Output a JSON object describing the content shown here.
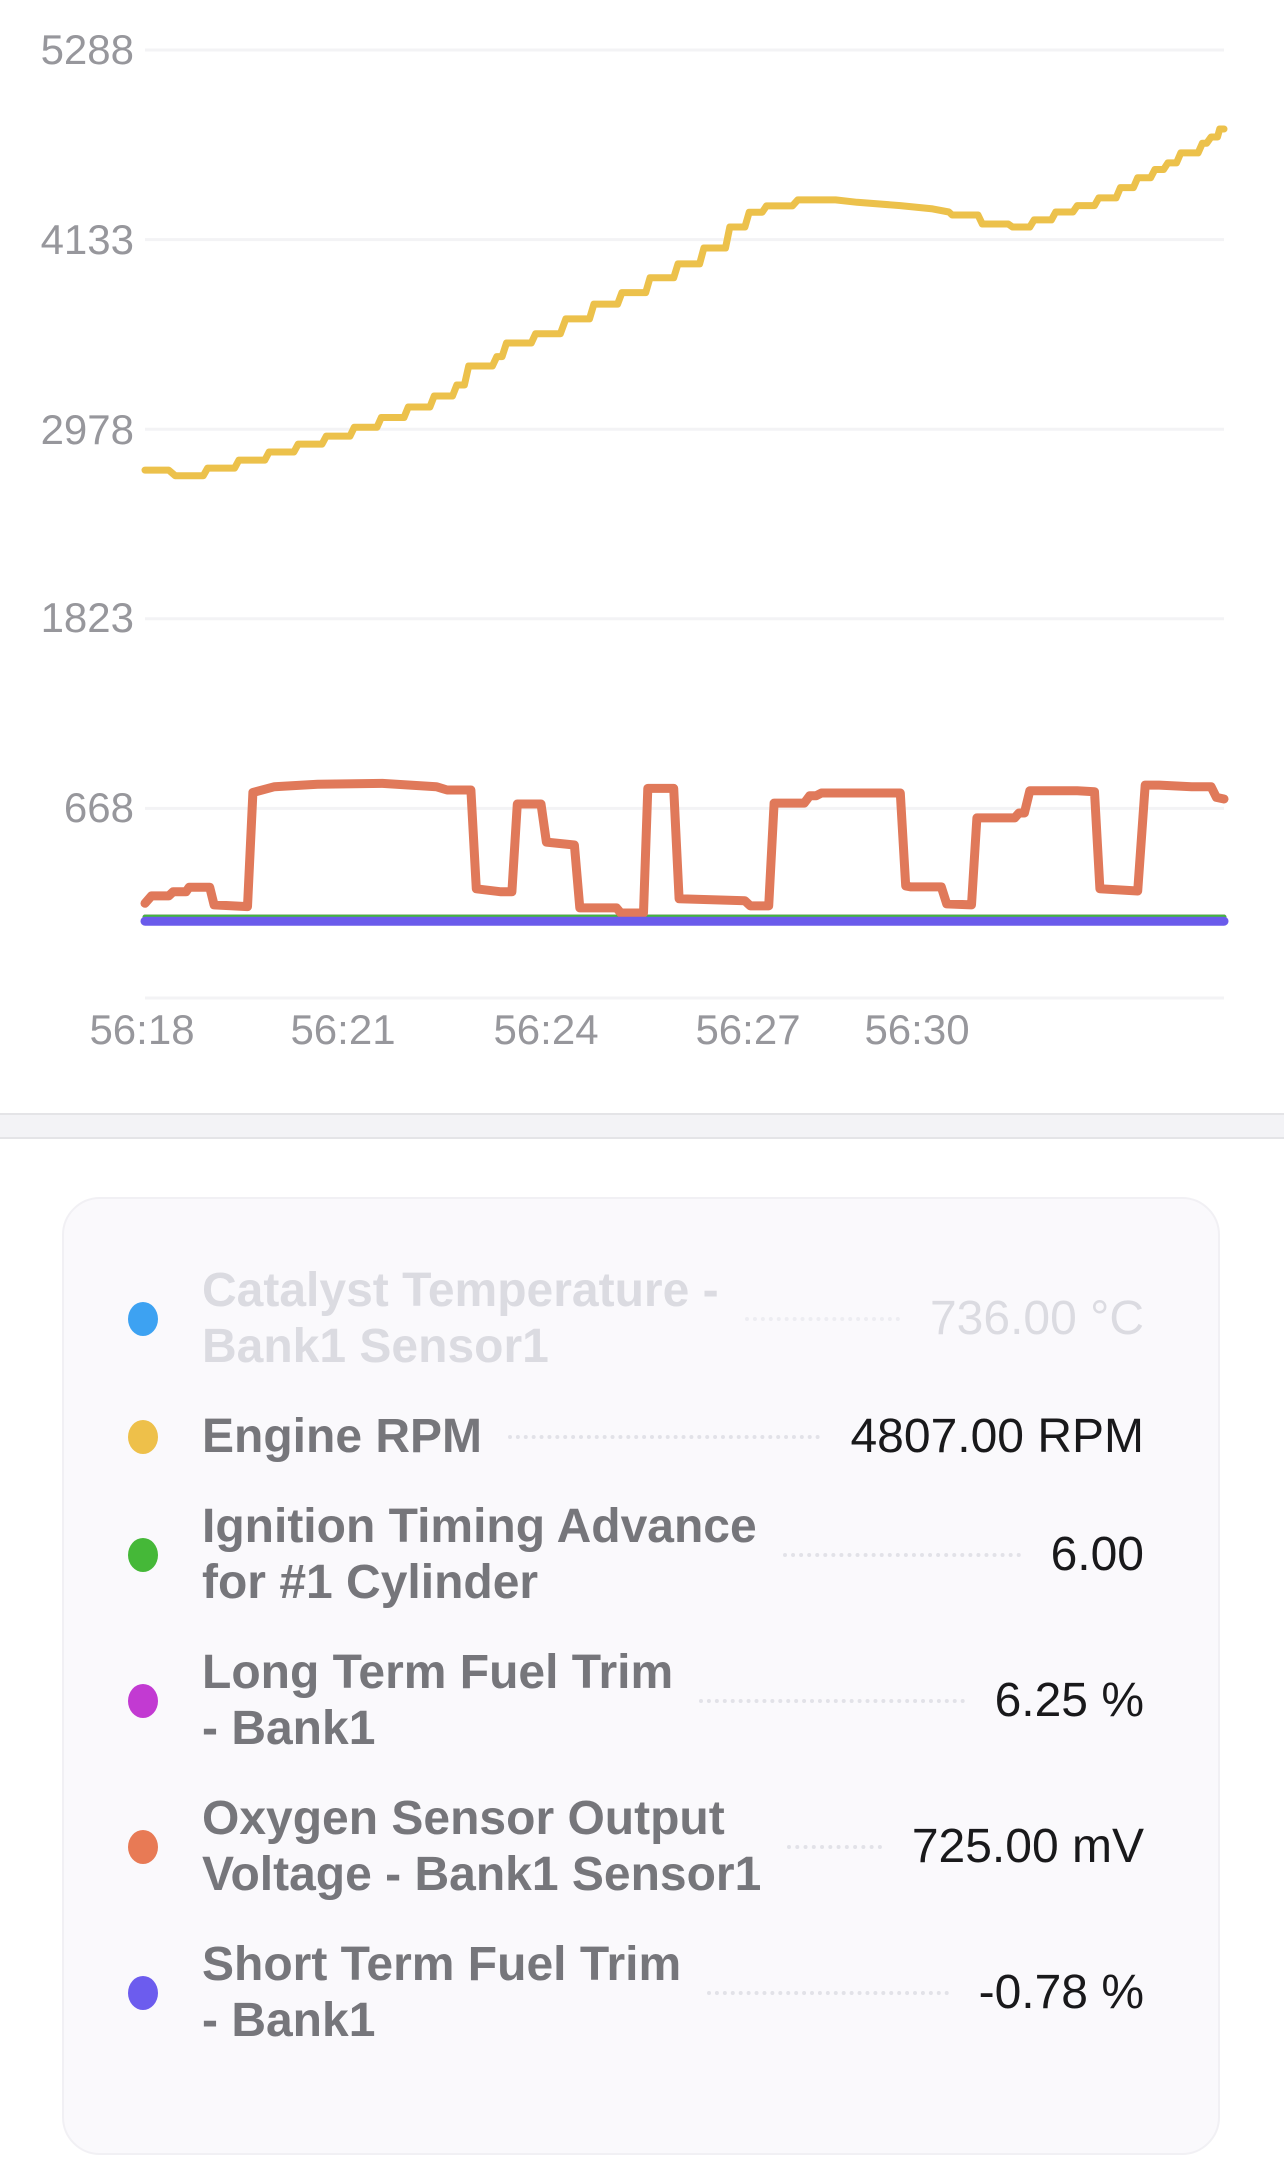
{
  "chart_data": {
    "type": "line",
    "title": "",
    "x_axis": {
      "labels": [
        "56:18",
        "56:21",
        "56:24",
        "56:27",
        "56:30"
      ],
      "unit": "mm:ss"
    },
    "y_axis": {
      "tick_labels": [
        "5288",
        "4133",
        "2978",
        "1823",
        "668"
      ],
      "ticks": [
        5288,
        4133,
        2978,
        1823,
        668
      ],
      "range_top": 5288,
      "range_bottom": -487,
      "baseline": -487,
      "gridlines": true
    },
    "legend_position": "bottom-card",
    "series": [
      {
        "name": "Catalyst Temperature - Bank1 Sensor1",
        "unit": "°C",
        "current_value": 736.0,
        "color": "#3da2f2",
        "visible": false,
        "width": 7,
        "points": []
      },
      {
        "name": "Engine RPM",
        "unit": "RPM",
        "current_value": 4807.0,
        "color": "#ecc14b",
        "visible": true,
        "width": 7,
        "points": [
          [
            0.0,
            2729
          ],
          [
            0.022,
            2729
          ],
          [
            0.028,
            2695
          ],
          [
            0.054,
            2695
          ],
          [
            0.058,
            2741
          ],
          [
            0.083,
            2741
          ],
          [
            0.087,
            2790
          ],
          [
            0.111,
            2790
          ],
          [
            0.115,
            2839
          ],
          [
            0.138,
            2839
          ],
          [
            0.142,
            2887
          ],
          [
            0.164,
            2887
          ],
          [
            0.168,
            2936
          ],
          [
            0.19,
            2936
          ],
          [
            0.194,
            2990
          ],
          [
            0.215,
            2990
          ],
          [
            0.219,
            3049
          ],
          [
            0.24,
            3049
          ],
          [
            0.244,
            3113
          ],
          [
            0.264,
            3113
          ],
          [
            0.268,
            3180
          ],
          [
            0.285,
            3180
          ],
          [
            0.289,
            3247
          ],
          [
            0.296,
            3247
          ],
          [
            0.3,
            3363
          ],
          [
            0.322,
            3363
          ],
          [
            0.326,
            3420
          ],
          [
            0.331,
            3420
          ],
          [
            0.335,
            3503
          ],
          [
            0.358,
            3503
          ],
          [
            0.362,
            3560
          ],
          [
            0.385,
            3560
          ],
          [
            0.39,
            3650
          ],
          [
            0.412,
            3650
          ],
          [
            0.416,
            3740
          ],
          [
            0.438,
            3740
          ],
          [
            0.442,
            3810
          ],
          [
            0.464,
            3810
          ],
          [
            0.468,
            3900
          ],
          [
            0.49,
            3900
          ],
          [
            0.494,
            3985
          ],
          [
            0.514,
            3985
          ],
          [
            0.518,
            4082
          ],
          [
            0.538,
            4082
          ],
          [
            0.542,
            4210
          ],
          [
            0.556,
            4210
          ],
          [
            0.56,
            4300
          ],
          [
            0.572,
            4300
          ],
          [
            0.576,
            4338
          ],
          [
            0.6,
            4338
          ],
          [
            0.605,
            4375
          ],
          [
            0.64,
            4375
          ],
          [
            0.66,
            4360
          ],
          [
            0.7,
            4340
          ],
          [
            0.73,
            4320
          ],
          [
            0.745,
            4301
          ],
          [
            0.748,
            4283
          ],
          [
            0.772,
            4283
          ],
          [
            0.776,
            4228
          ],
          [
            0.8,
            4228
          ],
          [
            0.804,
            4210
          ],
          [
            0.82,
            4210
          ],
          [
            0.824,
            4253
          ],
          [
            0.84,
            4253
          ],
          [
            0.844,
            4301
          ],
          [
            0.86,
            4301
          ],
          [
            0.864,
            4340
          ],
          [
            0.88,
            4340
          ],
          [
            0.884,
            4387
          ],
          [
            0.9,
            4387
          ],
          [
            0.904,
            4450
          ],
          [
            0.916,
            4450
          ],
          [
            0.92,
            4510
          ],
          [
            0.932,
            4510
          ],
          [
            0.936,
            4560
          ],
          [
            0.944,
            4560
          ],
          [
            0.948,
            4600
          ],
          [
            0.956,
            4600
          ],
          [
            0.96,
            4661
          ],
          [
            0.976,
            4661
          ],
          [
            0.98,
            4720
          ],
          [
            0.984,
            4720
          ],
          [
            0.988,
            4758
          ],
          [
            0.994,
            4758
          ],
          [
            0.996,
            4807
          ],
          [
            1.0,
            4807
          ]
        ]
      },
      {
        "name": "Ignition Timing Advance for #1 Cylinder",
        "unit": "",
        "current_value": 6.0,
        "color": "#43b83c",
        "visible": true,
        "width": 5,
        "points": [
          [
            0.0,
            6
          ],
          [
            1.0,
            6
          ]
        ]
      },
      {
        "name": "Long Term Fuel Trim - Bank1",
        "unit": "%",
        "current_value": 6.25,
        "color": "#c23ad2",
        "visible": true,
        "width": 5,
        "points": [
          [
            0.0,
            6.25
          ],
          [
            1.0,
            6.25
          ]
        ]
      },
      {
        "name": "Oxygen Sensor Output Voltage - Bank1 Sensor1",
        "unit": "mV",
        "current_value": 725.0,
        "color": "#e0795a",
        "visible": true,
        "width": 9,
        "points": [
          [
            0.0,
            90
          ],
          [
            0.006,
            135
          ],
          [
            0.022,
            135
          ],
          [
            0.026,
            160
          ],
          [
            0.038,
            160
          ],
          [
            0.041,
            188
          ],
          [
            0.06,
            188
          ],
          [
            0.064,
            80
          ],
          [
            0.095,
            70
          ],
          [
            0.1,
            765
          ],
          [
            0.12,
            800
          ],
          [
            0.16,
            815
          ],
          [
            0.22,
            820
          ],
          [
            0.27,
            800
          ],
          [
            0.276,
            788
          ],
          [
            0.28,
            780
          ],
          [
            0.302,
            780
          ],
          [
            0.307,
            178
          ],
          [
            0.33,
            160
          ],
          [
            0.34,
            160
          ],
          [
            0.345,
            695
          ],
          [
            0.367,
            695
          ],
          [
            0.372,
            463
          ],
          [
            0.398,
            445
          ],
          [
            0.403,
            62
          ],
          [
            0.437,
            62
          ],
          [
            0.441,
            31
          ],
          [
            0.462,
            31
          ],
          [
            0.466,
            790
          ],
          [
            0.49,
            790
          ],
          [
            0.495,
            117
          ],
          [
            0.556,
            105
          ],
          [
            0.561,
            74
          ],
          [
            0.578,
            74
          ],
          [
            0.583,
            700
          ],
          [
            0.611,
            700
          ],
          [
            0.616,
            745
          ],
          [
            0.622,
            745
          ],
          [
            0.627,
            762
          ],
          [
            0.7,
            762
          ],
          [
            0.705,
            196
          ],
          [
            0.71,
            190
          ],
          [
            0.738,
            190
          ],
          [
            0.743,
            86
          ],
          [
            0.766,
            80
          ],
          [
            0.771,
            610
          ],
          [
            0.806,
            610
          ],
          [
            0.81,
            640
          ],
          [
            0.815,
            640
          ],
          [
            0.82,
            775
          ],
          [
            0.864,
            775
          ],
          [
            0.88,
            770
          ],
          [
            0.885,
            178
          ],
          [
            0.92,
            165
          ],
          [
            0.927,
            810
          ],
          [
            0.94,
            810
          ],
          [
            0.97,
            800
          ],
          [
            0.988,
            800
          ],
          [
            0.993,
            735
          ],
          [
            1.0,
            725
          ]
        ]
      },
      {
        "name": "Short Term Fuel Trim - Bank1",
        "unit": "%",
        "current_value": -0.78,
        "color": "#6a5beb",
        "visible": true,
        "width": 9,
        "y_offset": 3,
        "points": [
          [
            0.0,
            -0.78
          ],
          [
            1.0,
            -0.78
          ]
        ]
      }
    ]
  },
  "legend": {
    "rows": [
      {
        "label": "Catalyst Temperature - Bank1 Sensor1",
        "label_lines": [
          "Catalyst Temperature -",
          "Bank1 Sensor1"
        ],
        "value": "736.00 °C",
        "color": "#3da2f2",
        "disabled": true
      },
      {
        "label": "Engine RPM",
        "label_lines": [
          "Engine RPM"
        ],
        "value": "4807.00 RPM",
        "color": "#eec04a",
        "disabled": false
      },
      {
        "label": "Ignition Timing Advance for #1 Cylinder",
        "label_lines": [
          "Ignition Timing Advance",
          "for #1 Cylinder"
        ],
        "value": "6.00",
        "color": "#45b838",
        "disabled": false
      },
      {
        "label": "Long Term Fuel Trim - Bank1",
        "label_lines": [
          "Long Term Fuel Trim",
          "- Bank1"
        ],
        "value": "6.25 %",
        "color": "#c23ad2",
        "disabled": false
      },
      {
        "label": "Oxygen Sensor Output Voltage - Bank1 Sensor1",
        "label_lines": [
          "Oxygen Sensor Output",
          "Voltage - Bank1 Sensor1"
        ],
        "value": "725.00 mV",
        "color": "#e87a55",
        "disabled": false
      },
      {
        "label": "Short Term Fuel Trim - Bank1",
        "label_lines": [
          "Short Term Fuel Trim",
          "- Bank1"
        ],
        "value": "-0.78 %",
        "color": "#6c5cee",
        "disabled": false
      }
    ]
  }
}
